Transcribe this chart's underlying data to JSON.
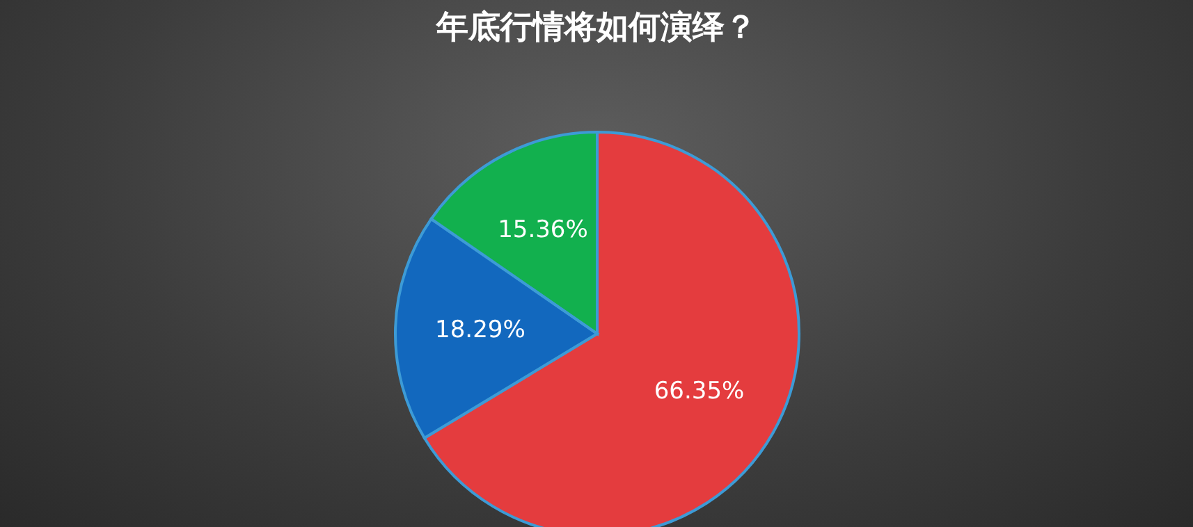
{
  "chart_data": {
    "type": "pie",
    "title": "年底行情将如何演绎？",
    "categories": [
      null,
      null,
      null
    ],
    "values": [
      66.35,
      18.29,
      15.36
    ],
    "colors": [
      "#e43c3e",
      "#1268be",
      "#12b04e"
    ],
    "value_labels": [
      "66.35%",
      "18.29%",
      "15.36%"
    ],
    "legend": false
  }
}
